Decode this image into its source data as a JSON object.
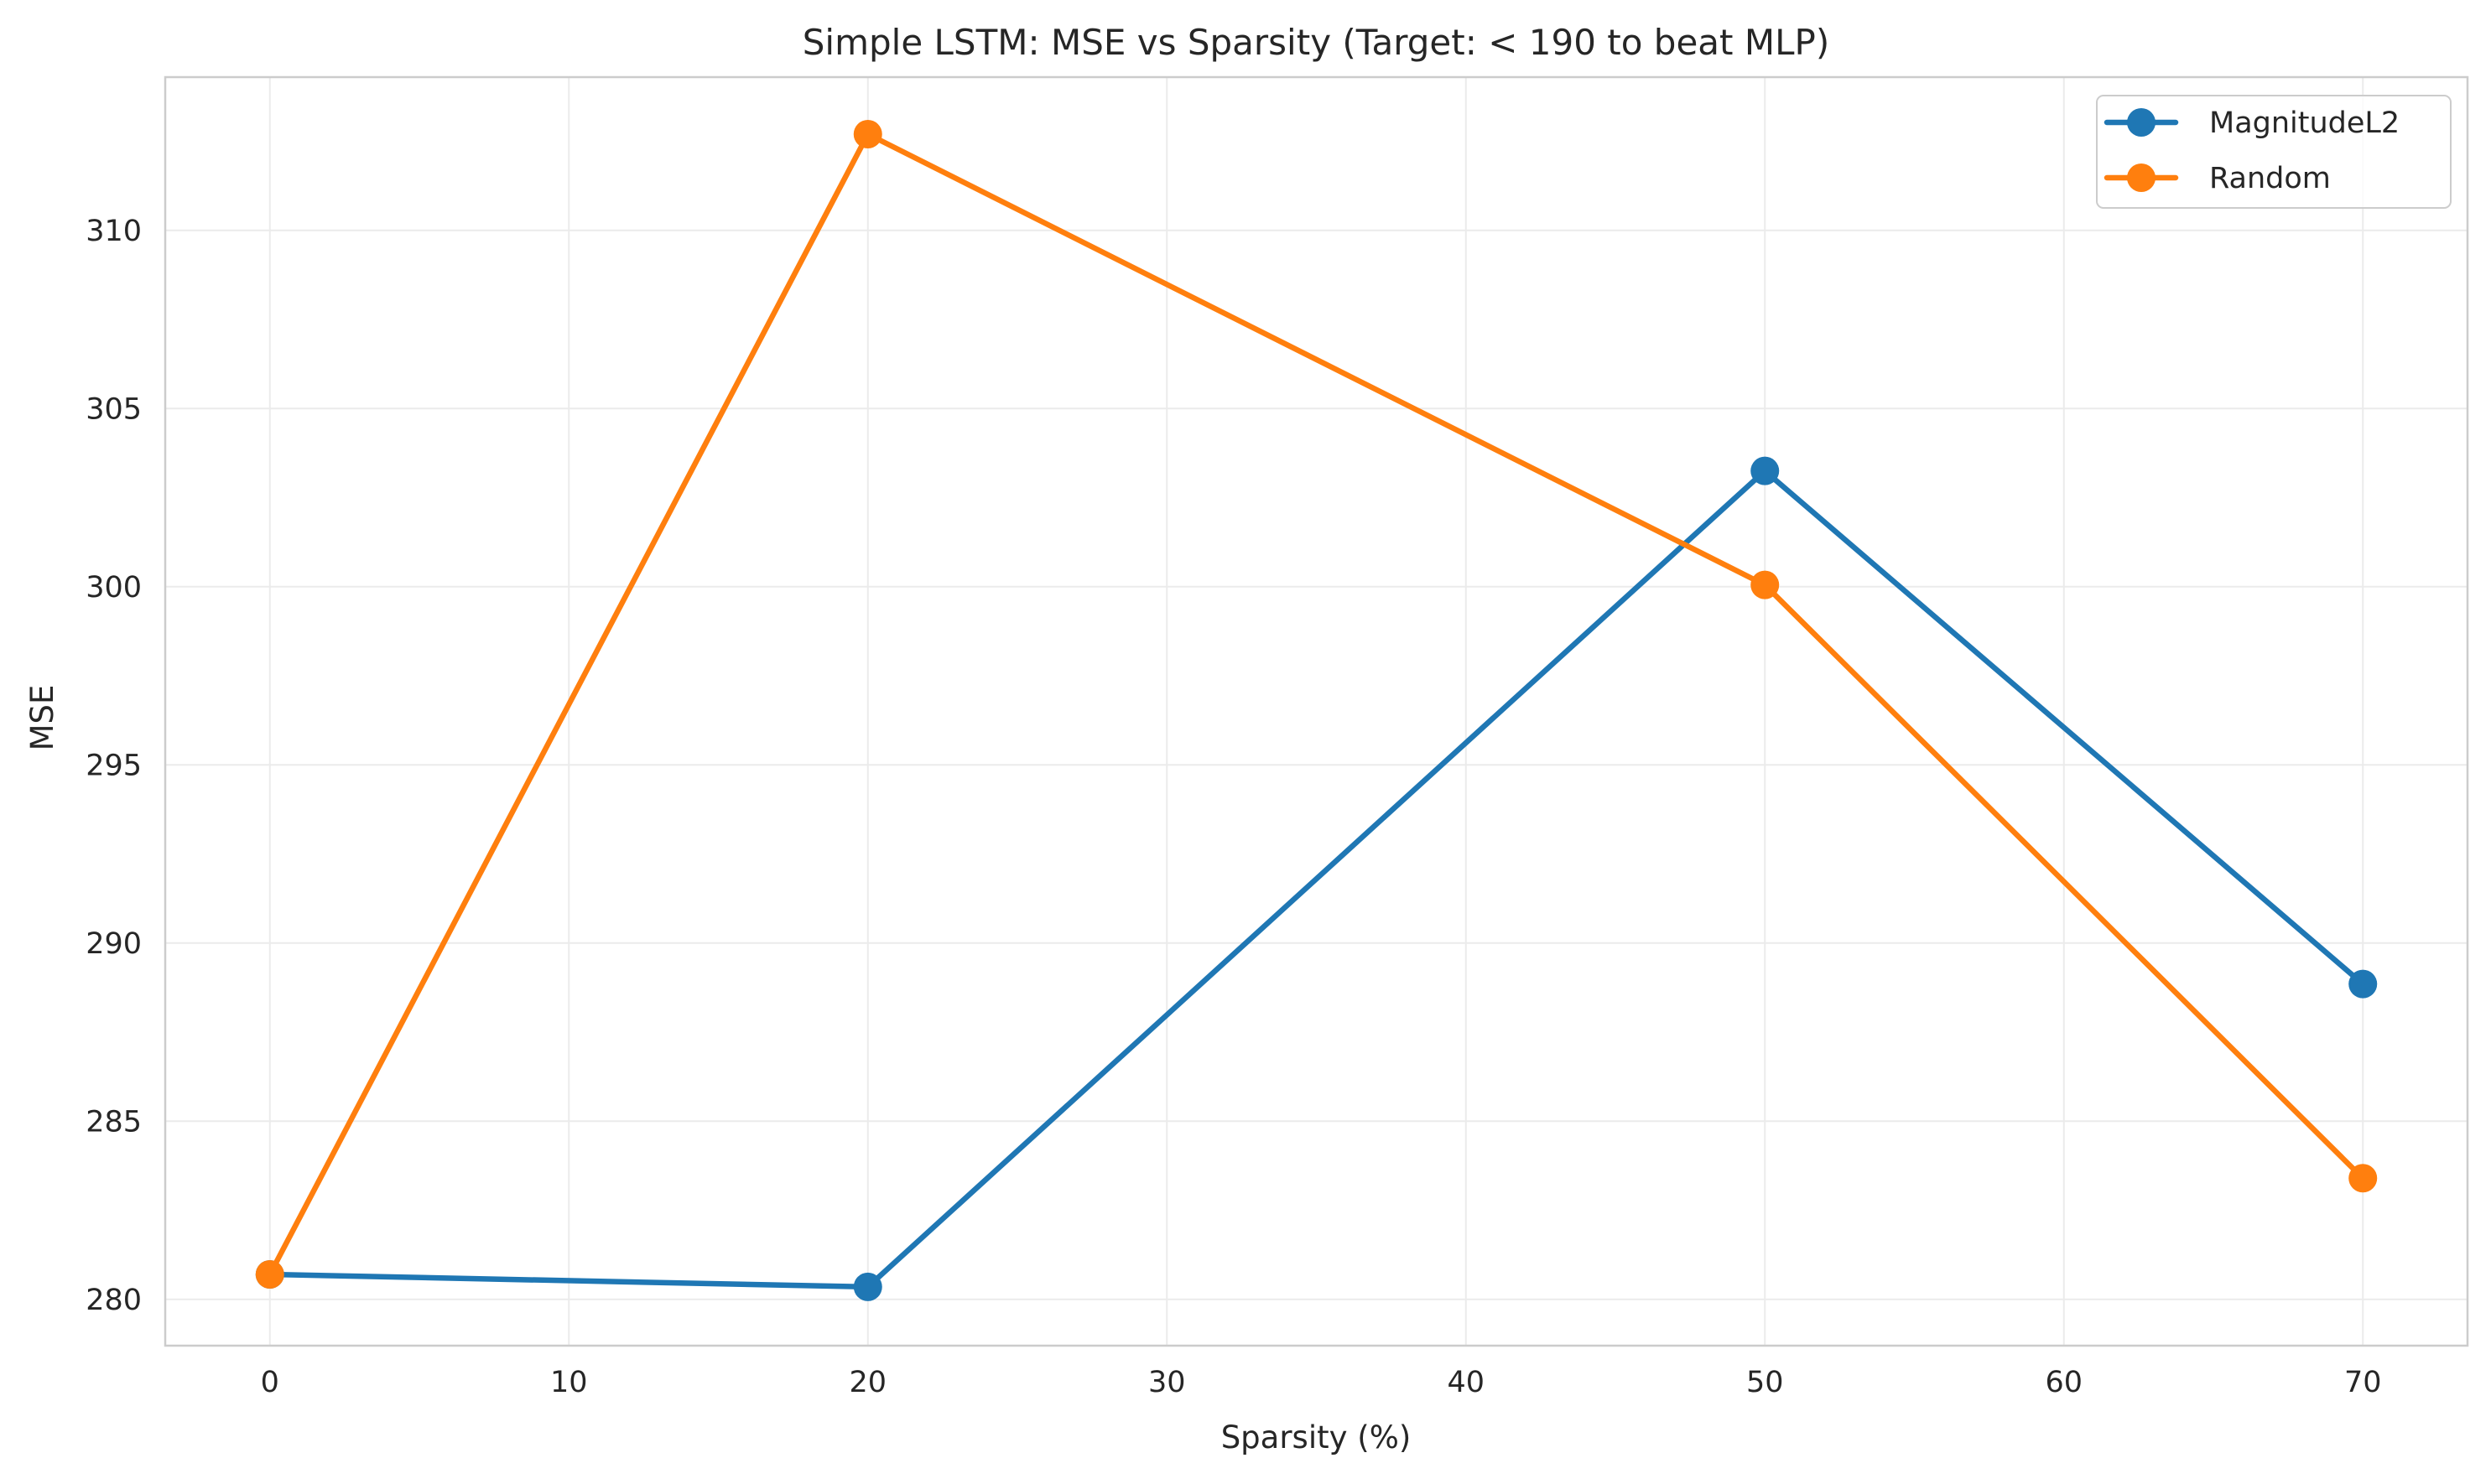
{
  "chart_data": {
    "type": "line",
    "title": "Simple LSTM: MSE vs Sparsity (Target: < 190 to beat MLP)",
    "xlabel": "Sparsity (%)",
    "ylabel": "MSE",
    "x": [
      0,
      20,
      50,
      70
    ],
    "series": [
      {
        "name": "MagnitudeL2",
        "color": "#1f77b4",
        "values": [
          280.7,
          280.35,
          303.25,
          288.85
        ]
      },
      {
        "name": "Random",
        "color": "#ff7f0e",
        "values": [
          280.7,
          312.7,
          300.05,
          283.4
        ]
      }
    ],
    "xlim": [
      -3.5,
      73.5
    ],
    "ylim": [
      278.7,
      314.3
    ],
    "xticks": [
      0,
      10,
      20,
      30,
      40,
      50,
      60,
      70
    ],
    "yticks": [
      280,
      285,
      290,
      295,
      300,
      305,
      310
    ],
    "grid": true,
    "legend_position": "upper right"
  }
}
